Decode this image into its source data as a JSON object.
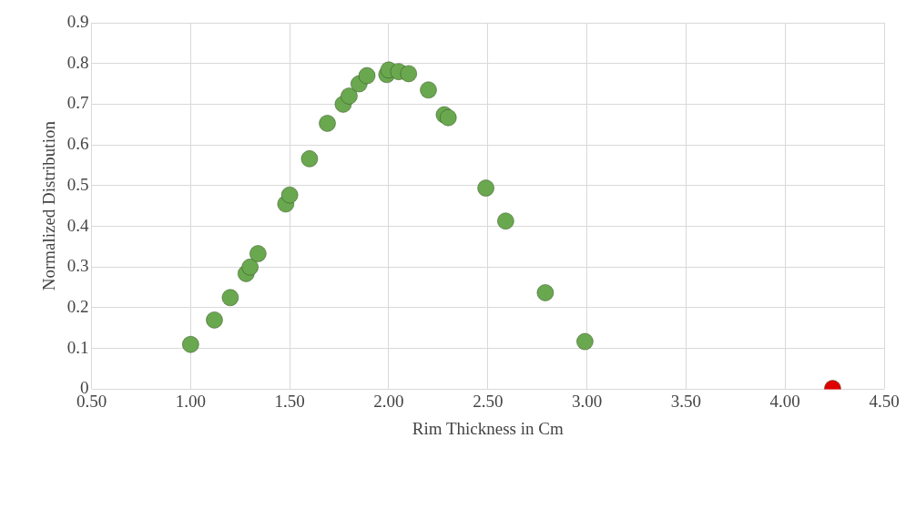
{
  "chart_data": {
    "type": "scatter",
    "xlabel": "Rim Thickness in Cm",
    "ylabel": "Normalized Distribution",
    "xlim": [
      0.5,
      4.5
    ],
    "xticks": [
      {
        "value": 0.5,
        "label": "0.50"
      },
      {
        "value": 1,
        "label": "1.00"
      },
      {
        "value": 1.5,
        "label": "1.50"
      },
      {
        "value": 2,
        "label": "2.00"
      },
      {
        "value": 2.5,
        "label": "2.50"
      },
      {
        "value": 3,
        "label": "3.00"
      },
      {
        "value": 3.5,
        "label": "3.50"
      },
      {
        "value": 4,
        "label": "4.00"
      },
      {
        "value": 4.5,
        "label": "4.50"
      }
    ],
    "ylim": [
      0,
      0.9
    ],
    "yticks": [
      0,
      0.1,
      0.2,
      0.3,
      0.4,
      0.5,
      0.6,
      0.7,
      0.8,
      0.9
    ],
    "grid": true,
    "legend": false,
    "marker": "circle",
    "series": [
      {
        "color": "#6aa84f",
        "x": [
          1.0,
          1.12,
          1.2,
          1.28,
          1.3,
          1.34,
          1.48,
          1.5,
          1.6,
          1.69,
          1.77,
          1.8,
          1.85,
          1.89,
          1.99,
          2.0,
          2.05,
          2.1,
          2.2,
          2.28,
          2.3,
          2.49,
          2.59,
          2.79,
          2.99
        ],
        "values": [
          0.11,
          0.17,
          0.225,
          0.284,
          0.3,
          0.333,
          0.455,
          0.477,
          0.566,
          0.653,
          0.7,
          0.72,
          0.75,
          0.77,
          0.773,
          0.784,
          0.78,
          0.775,
          0.735,
          0.674,
          0.667,
          0.494,
          0.413,
          0.237,
          0.117
        ]
      },
      {
        "color": "#e00000",
        "x": [
          4.24
        ],
        "values": [
          0.002
        ]
      }
    ]
  }
}
